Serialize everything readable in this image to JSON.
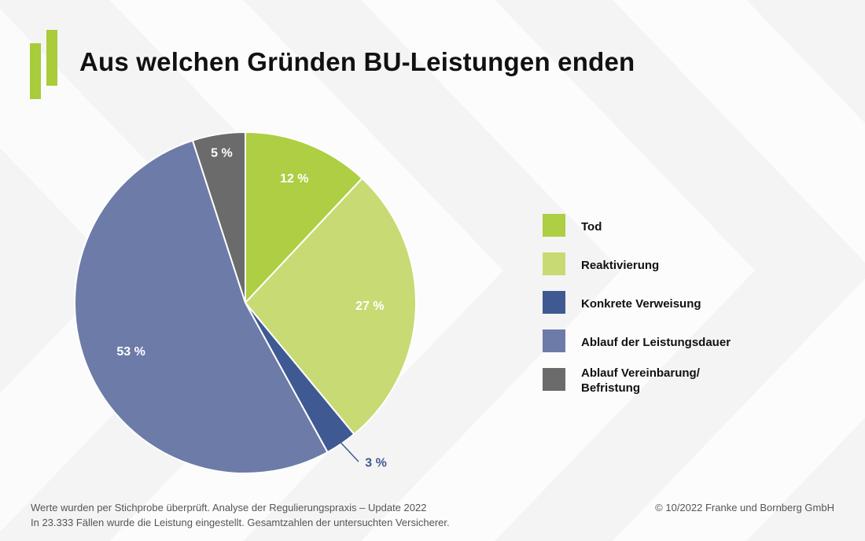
{
  "title": "Aus welchen Gründen BU-Leistungen enden",
  "chart_data": {
    "type": "pie",
    "title": "Aus welchen Gründen BU-Leistungen enden",
    "categories": [
      "Tod",
      "Reaktivierung",
      " Konkrete Verweisung",
      " Ablauf der Leistungsdauer",
      "Ablauf Vereinbarung/\nBefristung"
    ],
    "values": [
      12,
      27,
      3,
      53,
      5
    ],
    "labels": [
      "12 %",
      "27 %",
      "3 %",
      "53 %",
      "5 %"
    ],
    "colors": [
      "#aece43",
      "#c8da74",
      "#3f5a92",
      "#6d7ba8",
      "#6b6b6b"
    ],
    "label_colors": [
      "#ffffff",
      "#ffffff",
      "#3f5a92",
      "#ffffff",
      "#ffffff"
    ],
    "legend_position": "right"
  },
  "footer": {
    "line1": "Werte wurden per Stichprobe überprüft. Analyse der Regulierungspraxis – Update 2022",
    "line2": "In 23.333 Fällen wurde die Leistung eingestellt. Gesamtzahlen der untersuchten Versicherer.",
    "copyright": "© 10/2022 Franke und Bornberg GmbH"
  },
  "colors": {
    "brand_green": "#a8cc3a",
    "background": "#f4f4f4"
  }
}
